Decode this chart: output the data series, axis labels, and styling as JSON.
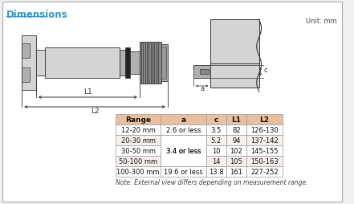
{
  "title": "Dimensions",
  "unit_label": "Unit: mm",
  "table_headers": [
    "Range",
    "a",
    "c",
    "L1",
    "L2"
  ],
  "table_rows": [
    [
      "12-20 mm",
      "2.6 or less",
      "3.5",
      "82",
      "126-130"
    ],
    [
      "20-30 mm",
      "",
      "5.2",
      "94",
      "137-142"
    ],
    [
      "30-50 mm",
      "3.4 or less",
      "10",
      "102",
      "145-155"
    ],
    [
      "50-100 mm",
      "",
      "14",
      "105",
      "150-163"
    ],
    [
      "100-300 mm",
      "19.6 or less",
      "13.8",
      "161",
      "227-252"
    ]
  ],
  "note": "Note: External view differs depending on measurement range.",
  "bg_color": "#f0f0f0",
  "border_color": "#aaaaaa",
  "title_color": "#3399cc",
  "header_bg": "#e8c0a0",
  "row_bg_alt": "#f5f0ee",
  "table_text_color": "#111111",
  "header_text_color": "#111111",
  "gray_light": "#d4d4d4",
  "gray_mid": "#b0b0b0",
  "gray_dark": "#888888",
  "gray_knurl": "#555555",
  "line_color": "#333333",
  "dim_color": "#333333"
}
